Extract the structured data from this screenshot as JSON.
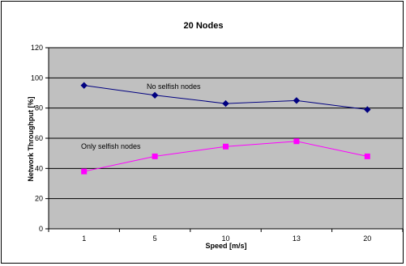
{
  "chart_data": {
    "type": "line",
    "title": "20 Nodes",
    "xlabel": "Speed [m/s]",
    "ylabel": "Network Throughput [%]",
    "categories": [
      "1",
      "5",
      "10",
      "13",
      "20"
    ],
    "ylim": [
      0,
      120
    ],
    "yticks": [
      "0",
      "20",
      "40",
      "60",
      "80",
      "100",
      "120"
    ],
    "grid": true,
    "plot_background": "#c0c0c0",
    "series": [
      {
        "name": "No selfish nodes",
        "color": "#000080",
        "marker": "diamond",
        "values": [
          95,
          88.5,
          83,
          85,
          79
        ]
      },
      {
        "name": "Only selfish nodes",
        "color": "#ff00ff",
        "marker": "square",
        "values": [
          38,
          48,
          54.5,
          58,
          48
        ]
      }
    ]
  }
}
